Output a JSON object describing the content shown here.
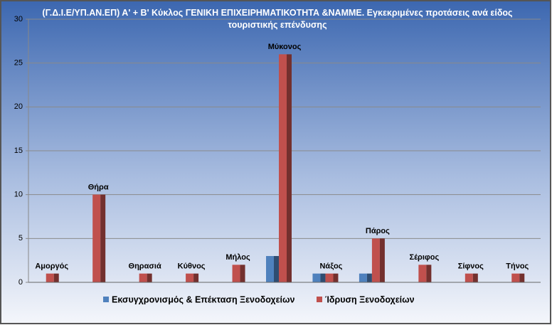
{
  "chart_data": {
    "type": "bar",
    "title": "(Γ.Δ.Ι.Ε/ΥΠ.ΑΝ.ΕΠ) Α' + Β'  Κύκλος ΓΕΝΙΚΗ ΕΠΙΧΕΙΡΗΜΑΤΙΚΟΤΗΤΑ &ΝΑΜΜΕ. Εγκεκριμένες προτάσεις ανά είδος τουριστικής επένδυσης",
    "categories": [
      "Αμοργός",
      "Θήρα",
      "Θηρασιά",
      "Κύθνος",
      "Μήλος",
      "Μύκονος",
      "Νάξος",
      "Πάρος",
      "Σέριφος",
      "Σίφνος",
      "Τήνος"
    ],
    "series": [
      {
        "name": "Εκσυγχρονισμός & Επέκταση Ξενοδοχείων",
        "color": "#4f81bd",
        "values": [
          0,
          0,
          0,
          0,
          0,
          3,
          1,
          1,
          0,
          0,
          0
        ]
      },
      {
        "name": "Ίδρυση Ξενοδοχείων",
        "color": "#c0504d",
        "values": [
          1,
          10,
          1,
          1,
          2,
          26,
          1,
          5,
          2,
          1,
          1
        ]
      }
    ],
    "ylim": [
      0,
      30
    ],
    "yticks": [
      0,
      5,
      10,
      15,
      20,
      25,
      30
    ],
    "grid": true,
    "legend": "bottom"
  }
}
